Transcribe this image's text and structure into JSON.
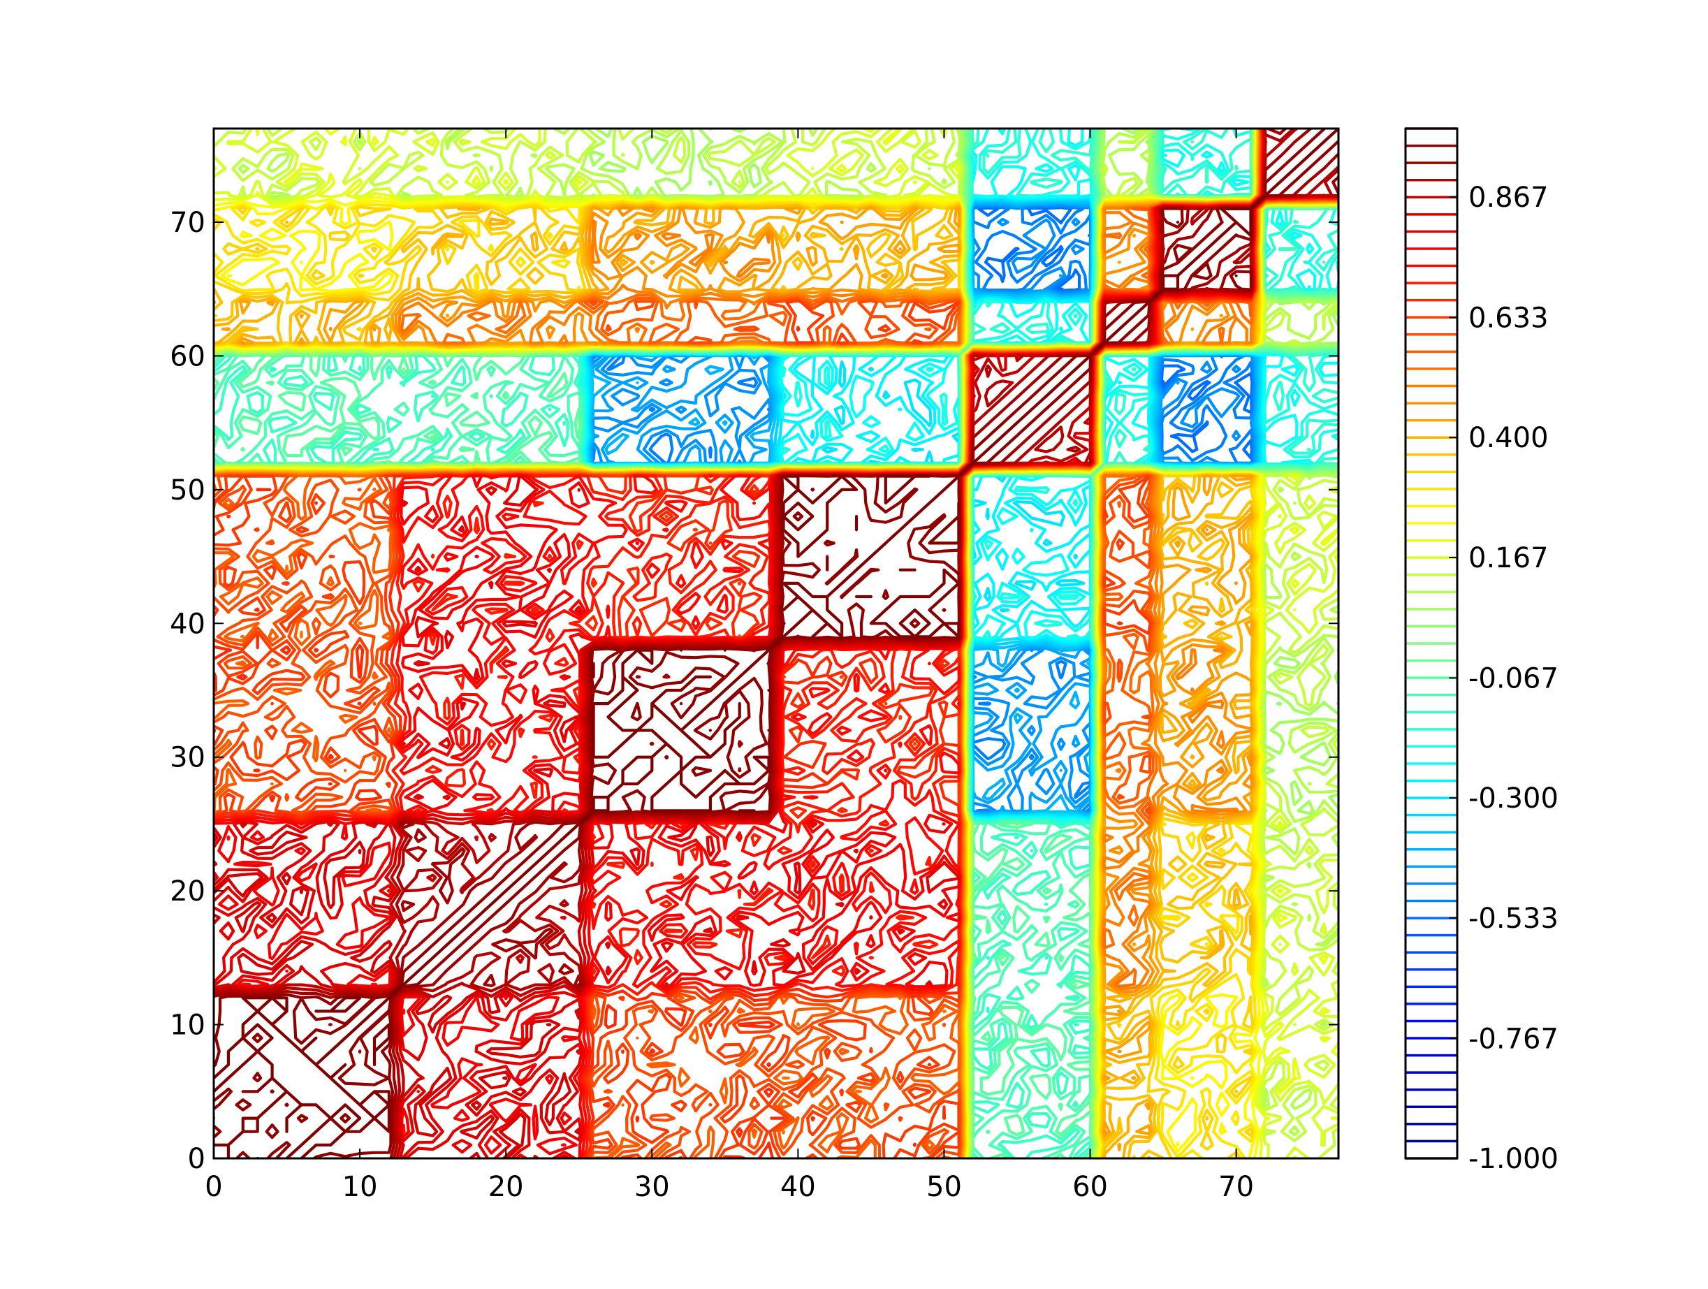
{
  "chart_data": {
    "type": "heatmap",
    "subtype": "contour (unfilled lines)",
    "title": "",
    "xlabel": "",
    "ylabel": "",
    "xlim": [
      0,
      77
    ],
    "ylim": [
      0,
      77
    ],
    "x_ticks": [
      "0",
      "10",
      "20",
      "30",
      "40",
      "50",
      "60",
      "70"
    ],
    "y_ticks": [
      "0",
      "10",
      "20",
      "30",
      "40",
      "50",
      "60",
      "70"
    ],
    "grid": false,
    "colormap": "jet",
    "colormap_colors": [
      "#00007f",
      "#0000ff",
      "#007fff",
      "#00ffff",
      "#7fff7f",
      "#ffff00",
      "#ff7f00",
      "#ff0000",
      "#7f0000"
    ],
    "colorbar": {
      "range": [
        -1.0,
        1.0
      ],
      "levels": 61,
      "tick_labels": [
        "-1.000",
        "-0.767",
        "-0.533",
        "-0.300",
        "-0.067",
        "0.167",
        "0.400",
        "0.633",
        "0.867"
      ]
    },
    "blocks": [
      [
        0,
        13
      ],
      [
        13,
        26
      ],
      [
        26,
        39
      ],
      [
        39,
        52
      ],
      [
        52,
        61
      ],
      [
        61,
        65
      ],
      [
        65,
        72
      ],
      [
        72,
        77
      ]
    ],
    "correlation_matrix_by_block": [
      [
        1.0,
        0.8,
        0.62,
        0.6,
        -0.1,
        0.4,
        0.3,
        0.15
      ],
      [
        0.8,
        0.9,
        0.75,
        0.75,
        -0.1,
        0.5,
        0.35,
        0.15
      ],
      [
        0.62,
        0.75,
        1.0,
        0.7,
        -0.45,
        0.55,
        0.45,
        0.1
      ],
      [
        0.6,
        0.75,
        0.7,
        1.0,
        -0.25,
        0.6,
        0.4,
        0.15
      ],
      [
        -0.1,
        -0.1,
        -0.45,
        -0.25,
        0.85,
        -0.2,
        -0.5,
        -0.2
      ],
      [
        0.4,
        0.5,
        0.55,
        0.6,
        -0.2,
        0.85,
        0.5,
        0.1
      ],
      [
        0.3,
        0.35,
        0.45,
        0.4,
        -0.5,
        0.5,
        0.95,
        -0.2
      ],
      [
        0.15,
        0.15,
        0.1,
        0.15,
        -0.2,
        0.1,
        -0.2,
        0.9
      ]
    ]
  }
}
